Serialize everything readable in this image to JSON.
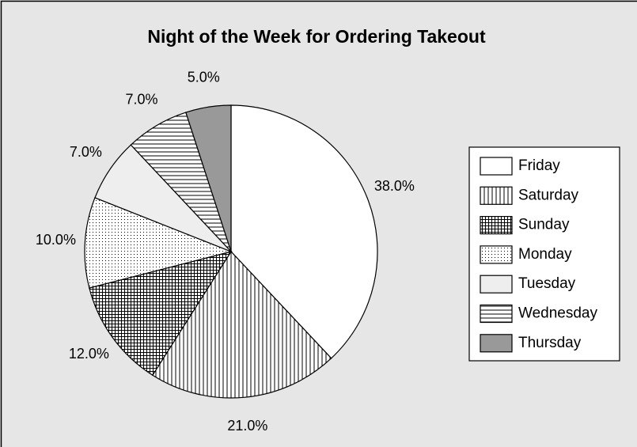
{
  "chart_data": {
    "type": "pie",
    "title": "Night of the Week for Ordering Takeout",
    "categories": [
      "Friday",
      "Saturday",
      "Sunday",
      "Monday",
      "Tuesday",
      "Wednesday",
      "Thursday"
    ],
    "values": [
      38,
      21,
      12,
      10,
      7,
      7,
      5
    ],
    "value_labels": [
      "38.0%",
      "21.0%",
      "12.0%",
      "10.0%",
      "7.0%",
      "7.0%",
      "5.0%"
    ],
    "colors": [
      "#ffffff",
      "#ffffff",
      "#ffffff",
      "#ffffff",
      "#eeeeee",
      "#ffffff",
      "#999999"
    ],
    "patterns": [
      "solid",
      "vertical",
      "grid",
      "dots",
      "solid",
      "horizontal",
      "solid"
    ],
    "legend": "right"
  }
}
